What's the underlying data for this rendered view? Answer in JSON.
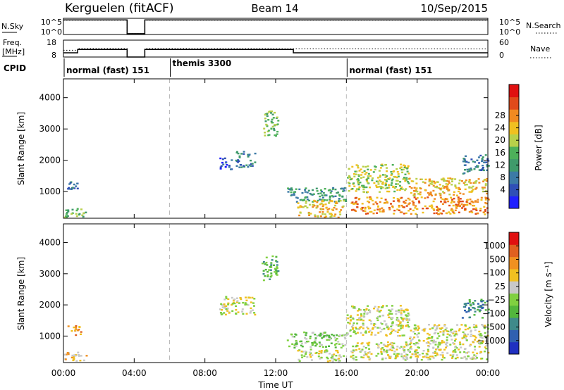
{
  "header": {
    "station": "Kerguelen (fitACF)",
    "beam": "Beam 14",
    "date": "10/Sep/2015"
  },
  "chart_data": [
    {
      "type": "line",
      "panel": "noise",
      "left_label": "N.Sky",
      "right_label": "N.Search",
      "left_ticks": [
        "10^5",
        "10^0"
      ],
      "right_ticks": [
        "10^5",
        "10^0"
      ],
      "series": [
        {
          "name": "N.Sky",
          "style": "solid",
          "x": [
            0.0,
            3.6,
            3.6,
            4.6,
            4.6,
            24.0
          ],
          "y": [
            0.9,
            0.9,
            0.05,
            0.05,
            0.9,
            0.9
          ]
        },
        {
          "name": "N.Search",
          "style": "dotted",
          "x": [
            0.0,
            3.6,
            3.6,
            4.6,
            4.6,
            24.0
          ],
          "y": [
            0.88,
            0.88,
            0.05,
            0.05,
            0.88,
            0.88
          ]
        }
      ]
    },
    {
      "type": "line",
      "panel": "frequency",
      "left_label_lines": [
        "Freq.",
        "[MHz]"
      ],
      "right_label": "Nave",
      "left_ticks": [
        "18",
        "8"
      ],
      "right_ticks": [
        "60",
        "0"
      ],
      "left_ylim": [
        8,
        18
      ],
      "series": [
        {
          "name": "Freq.",
          "style": "solid",
          "x": [
            0.0,
            0.8,
            0.8,
            3.6,
            3.6,
            4.6,
            4.6,
            13.0,
            13.0,
            24.0
          ],
          "y": [
            10.5,
            10.5,
            12.5,
            12.5,
            8.0,
            8.0,
            12.5,
            12.5,
            10.5,
            10.5
          ]
        },
        {
          "name": "Nave",
          "style": "dotted",
          "x": [
            0.0,
            0.8,
            0.8,
            3.6,
            3.6,
            4.6,
            4.6,
            24.0
          ],
          "y": [
            12.0,
            12.0,
            13.0,
            13.0,
            8.0,
            8.0,
            13.0,
            12.8
          ]
        }
      ]
    },
    {
      "type": "table",
      "panel": "cpid",
      "label": "CPID",
      "segments": [
        {
          "start": 0,
          "end": 6,
          "label": "normal (fast) 151"
        },
        {
          "start": 6,
          "end": 16,
          "label": "themis 3300"
        },
        {
          "start": 16,
          "end": 24,
          "label": "normal (fast) 151"
        }
      ]
    },
    {
      "type": "heatmap",
      "panel": "power",
      "ylabel": "Slant Range [km]",
      "ylim": [
        150,
        4600
      ],
      "yticks": [
        1000,
        2000,
        3000,
        4000
      ],
      "colorbar": {
        "label": "Power [dB]",
        "ticks": [
          "4",
          "8",
          "12",
          "16",
          "20",
          "24",
          "28"
        ],
        "colors": [
          "#2020ff",
          "#2f4fb6",
          "#3c7aa6",
          "#3f9a6b",
          "#4db05a",
          "#b8d04a",
          "#f0c020",
          "#f08a20",
          "#e04a1a",
          "#e01010"
        ]
      },
      "regions": [
        {
          "t0": 0.2,
          "t1": 1.0,
          "r0": 1050,
          "r1": 1350,
          "level": 2
        },
        {
          "t0": 0.0,
          "t1": 1.3,
          "r0": 200,
          "r1": 500,
          "level": 4
        },
        {
          "t0": 8.8,
          "t1": 9.5,
          "r0": 1700,
          "r1": 2100,
          "level": 1
        },
        {
          "t0": 9.7,
          "t1": 10.8,
          "r0": 1800,
          "r1": 2300,
          "level": 2
        },
        {
          "t0": 11.2,
          "t1": 12.1,
          "r0": 2800,
          "r1": 3600,
          "level": 4
        },
        {
          "t0": 12.6,
          "t1": 16.0,
          "r0": 700,
          "r1": 1150,
          "level": 3
        },
        {
          "t0": 13.2,
          "t1": 15.8,
          "r0": 200,
          "r1": 750,
          "level": 6
        },
        {
          "t0": 16.0,
          "t1": 19.5,
          "r0": 1000,
          "r1": 1900,
          "level": 5
        },
        {
          "t0": 16.2,
          "t1": 24.0,
          "r0": 300,
          "r1": 850,
          "level": 7
        },
        {
          "t0": 19.5,
          "t1": 24.0,
          "r0": 900,
          "r1": 1450,
          "level": 6
        },
        {
          "t0": 22.5,
          "t1": 24.0,
          "r0": 1600,
          "r1": 2200,
          "level": 2
        }
      ]
    },
    {
      "type": "heatmap",
      "panel": "velocity",
      "ylabel": "Slant Range [km]",
      "ylim": [
        150,
        4600
      ],
      "yticks": [
        1000,
        2000,
        3000,
        4000
      ],
      "colorbar": {
        "label": "Velocity [m s⁻¹]",
        "ticks": [
          "1000",
          "500",
          "100",
          "25",
          "−25",
          "−100",
          "−500",
          "−1000"
        ],
        "colors": [
          "#2030c0",
          "#3060b0",
          "#3f8a8a",
          "#52b63c",
          "#80d040",
          "#c8c8c8",
          "#f0c020",
          "#f09020",
          "#e06020",
          "#e01010"
        ]
      },
      "regions": [
        {
          "t0": 0.2,
          "t1": 1.0,
          "r0": 1050,
          "r1": 1350,
          "level": 7
        },
        {
          "t0": 0.0,
          "t1": 1.3,
          "r0": 200,
          "r1": 500,
          "level": 6
        },
        {
          "t0": 8.8,
          "t1": 10.8,
          "r0": 1700,
          "r1": 2300,
          "level": 5
        },
        {
          "t0": 11.2,
          "t1": 12.1,
          "r0": 2800,
          "r1": 3600,
          "level": 3
        },
        {
          "t0": 12.6,
          "t1": 16.0,
          "r0": 650,
          "r1": 1150,
          "level": 4
        },
        {
          "t0": 13.2,
          "t1": 15.8,
          "r0": 200,
          "r1": 600,
          "level": 5
        },
        {
          "t0": 16.0,
          "t1": 19.5,
          "r0": 1000,
          "r1": 2000,
          "level": 5
        },
        {
          "t0": 16.2,
          "t1": 24.0,
          "r0": 250,
          "r1": 850,
          "level": 5
        },
        {
          "t0": 19.5,
          "t1": 24.0,
          "r0": 800,
          "r1": 1400,
          "level": 5
        },
        {
          "t0": 22.5,
          "t1": 24.0,
          "r0": 1600,
          "r1": 2200,
          "level": 2
        }
      ]
    }
  ],
  "x_axis": {
    "label": "Time UT",
    "range": [
      0,
      24
    ],
    "ticks": [
      "00:00",
      "04:00",
      "08:00",
      "12:00",
      "16:00",
      "20:00",
      "00:00"
    ]
  }
}
